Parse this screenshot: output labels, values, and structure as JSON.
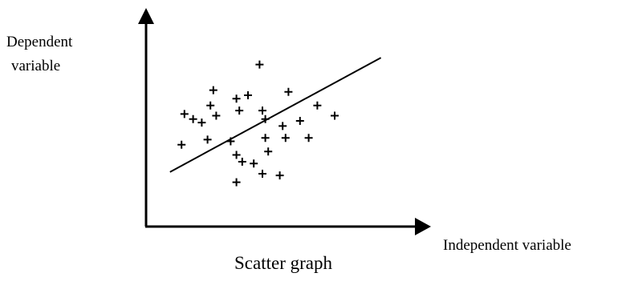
{
  "chart_data": {
    "type": "scatter",
    "title": "Scatter graph",
    "xlabel": "Independent variable",
    "ylabel": [
      "Dependent",
      "variable"
    ],
    "grid": false,
    "legend": "none",
    "marker": "plus",
    "color": "#000000",
    "xlim": [
      0,
      100
    ],
    "ylim": [
      0,
      100
    ],
    "points": [
      {
        "x": 13,
        "y": 66
      },
      {
        "x": 16,
        "y": 63
      },
      {
        "x": 12,
        "y": 48
      },
      {
        "x": 23,
        "y": 80
      },
      {
        "x": 22,
        "y": 71
      },
      {
        "x": 19,
        "y": 61
      },
      {
        "x": 24,
        "y": 65
      },
      {
        "x": 21,
        "y": 51
      },
      {
        "x": 31,
        "y": 75
      },
      {
        "x": 32,
        "y": 68
      },
      {
        "x": 35,
        "y": 77
      },
      {
        "x": 29,
        "y": 50
      },
      {
        "x": 31,
        "y": 42
      },
      {
        "x": 33,
        "y": 38
      },
      {
        "x": 37,
        "y": 37
      },
      {
        "x": 40,
        "y": 68
      },
      {
        "x": 41,
        "y": 63
      },
      {
        "x": 41,
        "y": 52
      },
      {
        "x": 42,
        "y": 44
      },
      {
        "x": 40,
        "y": 31
      },
      {
        "x": 31,
        "y": 26
      },
      {
        "x": 46,
        "y": 30
      },
      {
        "x": 39,
        "y": 95
      },
      {
        "x": 49,
        "y": 79
      },
      {
        "x": 47,
        "y": 59
      },
      {
        "x": 48,
        "y": 52
      },
      {
        "x": 53,
        "y": 62
      },
      {
        "x": 56,
        "y": 52
      },
      {
        "x": 59,
        "y": 71
      },
      {
        "x": 65,
        "y": 65
      }
    ],
    "trendline": {
      "x": [
        8,
        81
      ],
      "y": [
        32,
        99
      ]
    }
  }
}
